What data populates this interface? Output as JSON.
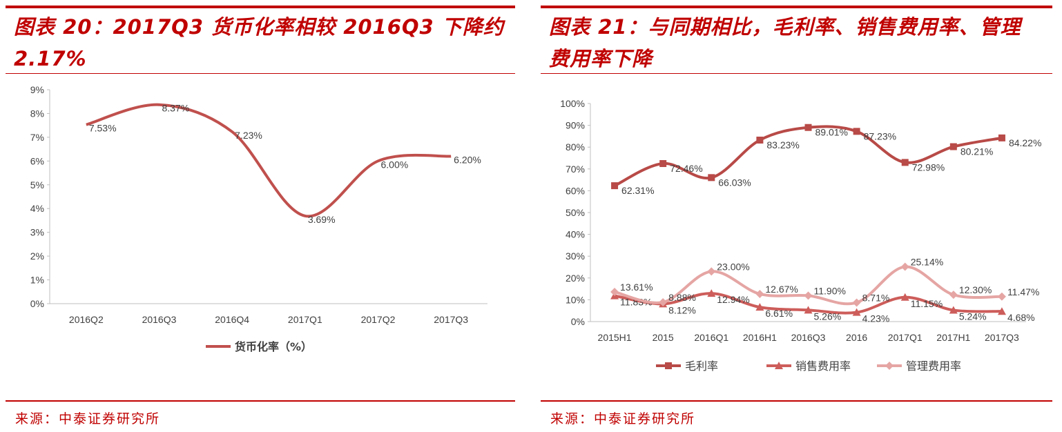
{
  "left": {
    "title": "图表 20：2017Q3 货币化率相较 2016Q3 下降约 2.17%",
    "source": "来源：中泰证券研究所",
    "chart_data": {
      "type": "line",
      "categories": [
        "2016Q2",
        "2016Q3",
        "2016Q4",
        "2017Q1",
        "2017Q2",
        "2017Q3"
      ],
      "series": [
        {
          "name": "货币化率（%）",
          "values": [
            7.53,
            8.37,
            7.23,
            3.69,
            6.0,
            6.2
          ],
          "labels": [
            "7.53%",
            "8.37%",
            "7.23%",
            "3.69%",
            "6.00%",
            "6.20%"
          ],
          "color": "#c0504d"
        }
      ],
      "yticks": [
        "0%",
        "1%",
        "2%",
        "3%",
        "4%",
        "5%",
        "6%",
        "7%",
        "8%",
        "9%"
      ],
      "ylim": [
        0,
        9
      ],
      "smooth": true,
      "legend_position": "bottom",
      "grid": false
    }
  },
  "right": {
    "title_line1": "图表 21：与同期相比，毛利率、销售费用率、管理",
    "title_line2": "费用率下降",
    "source": "来源：中泰证券研究所",
    "chart_data": {
      "type": "line",
      "categories": [
        "2015H1",
        "2015",
        "2016Q1",
        "2016H1",
        "2016Q3",
        "2016",
        "2017Q1",
        "2017H1",
        "2017Q3"
      ],
      "series": [
        {
          "name": "毛利率",
          "marker": "square",
          "color": "#b84a47",
          "values": [
            62.31,
            72.46,
            66.03,
            83.23,
            89.01,
            87.23,
            72.98,
            80.21,
            84.22
          ],
          "labels": [
            "62.31%",
            "72.46%",
            "66.03%",
            "83.23%",
            "89.01%",
            "87.23%",
            "72.98%",
            "80.21%",
            "84.22%"
          ]
        },
        {
          "name": "销售费用率",
          "marker": "triangle",
          "color": "#cd5d5a",
          "values": [
            11.83,
            8.12,
            12.94,
            6.61,
            5.26,
            4.23,
            11.15,
            5.24,
            4.68
          ],
          "labels": [
            "11.83%",
            "8.12%",
            "12.94%",
            "6.61%",
            "5.26%",
            "4.23%",
            "11.15%",
            "5.24%",
            "4.68%"
          ]
        },
        {
          "name": "管理费用率",
          "marker": "diamond",
          "color": "#e5a5a3",
          "values": [
            13.61,
            8.88,
            23.0,
            12.67,
            11.9,
            8.71,
            25.14,
            12.3,
            11.47
          ],
          "labels": [
            "13.61%",
            "8.88%",
            "23.00%",
            "12.67%",
            "11.90%",
            "8.71%",
            "25.14%",
            "12.30%",
            "11.47%"
          ]
        }
      ],
      "yticks": [
        "0%",
        "10%",
        "20%",
        "30%",
        "40%",
        "50%",
        "60%",
        "70%",
        "80%",
        "90%",
        "100%"
      ],
      "ylim": [
        0,
        100
      ],
      "smooth": true,
      "legend_position": "bottom",
      "grid": false
    }
  }
}
